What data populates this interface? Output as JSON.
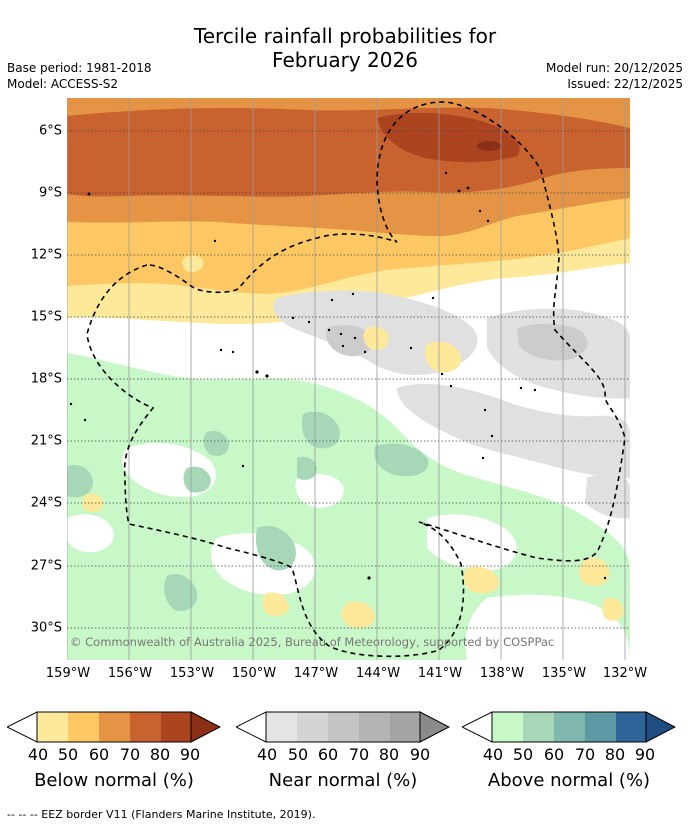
{
  "header": {
    "title_line1": "Tercile rainfall probabilities for",
    "title_line2": "February 2026",
    "base_period": "Base period: 1981-2018",
    "model": "Model: ACCESS-S2",
    "model_run": "Model run: 20/12/2025",
    "issued": "Issued: 22/12/2025"
  },
  "map": {
    "lat_labels": [
      "6°S",
      "9°S",
      "12°S",
      "15°S",
      "18°S",
      "21°S",
      "24°S",
      "27°S",
      "30°S"
    ],
    "lon_labels": [
      "159°W",
      "156°W",
      "153°W",
      "150°W",
      "147°W",
      "144°W",
      "141°W",
      "138°W",
      "135°W",
      "132°W"
    ],
    "credit": "© Commonwealth of Australia 2025, Bureau of Meteorology, supported by COSPPac"
  },
  "colorbars": [
    {
      "label": "Below normal (%)",
      "ticks": [
        "40",
        "50",
        "60",
        "70",
        "80",
        "90"
      ],
      "colors": [
        "#fee99a",
        "#fdc864",
        "#e49444",
        "#c8622e",
        "#ad4420",
        "#8b2f16"
      ]
    },
    {
      "label": "Near normal (%)",
      "ticks": [
        "40",
        "50",
        "60",
        "70",
        "80",
        "90"
      ],
      "colors": [
        "#e4e4e4",
        "#d4d4d4",
        "#c4c4c4",
        "#b4b4b4",
        "#a4a4a4",
        "#8a8a8a"
      ]
    },
    {
      "label": "Above normal (%)",
      "ticks": [
        "40",
        "50",
        "60",
        "70",
        "80",
        "90"
      ],
      "colors": [
        "#c8f8c8",
        "#a6d8b8",
        "#80b8b0",
        "#5e98a4",
        "#2f6498",
        "#1f4d80"
      ]
    }
  ],
  "footer": {
    "eez_note": "--  --  -- EEZ border V11 (Flanders Marine Institute, 2019)."
  }
}
